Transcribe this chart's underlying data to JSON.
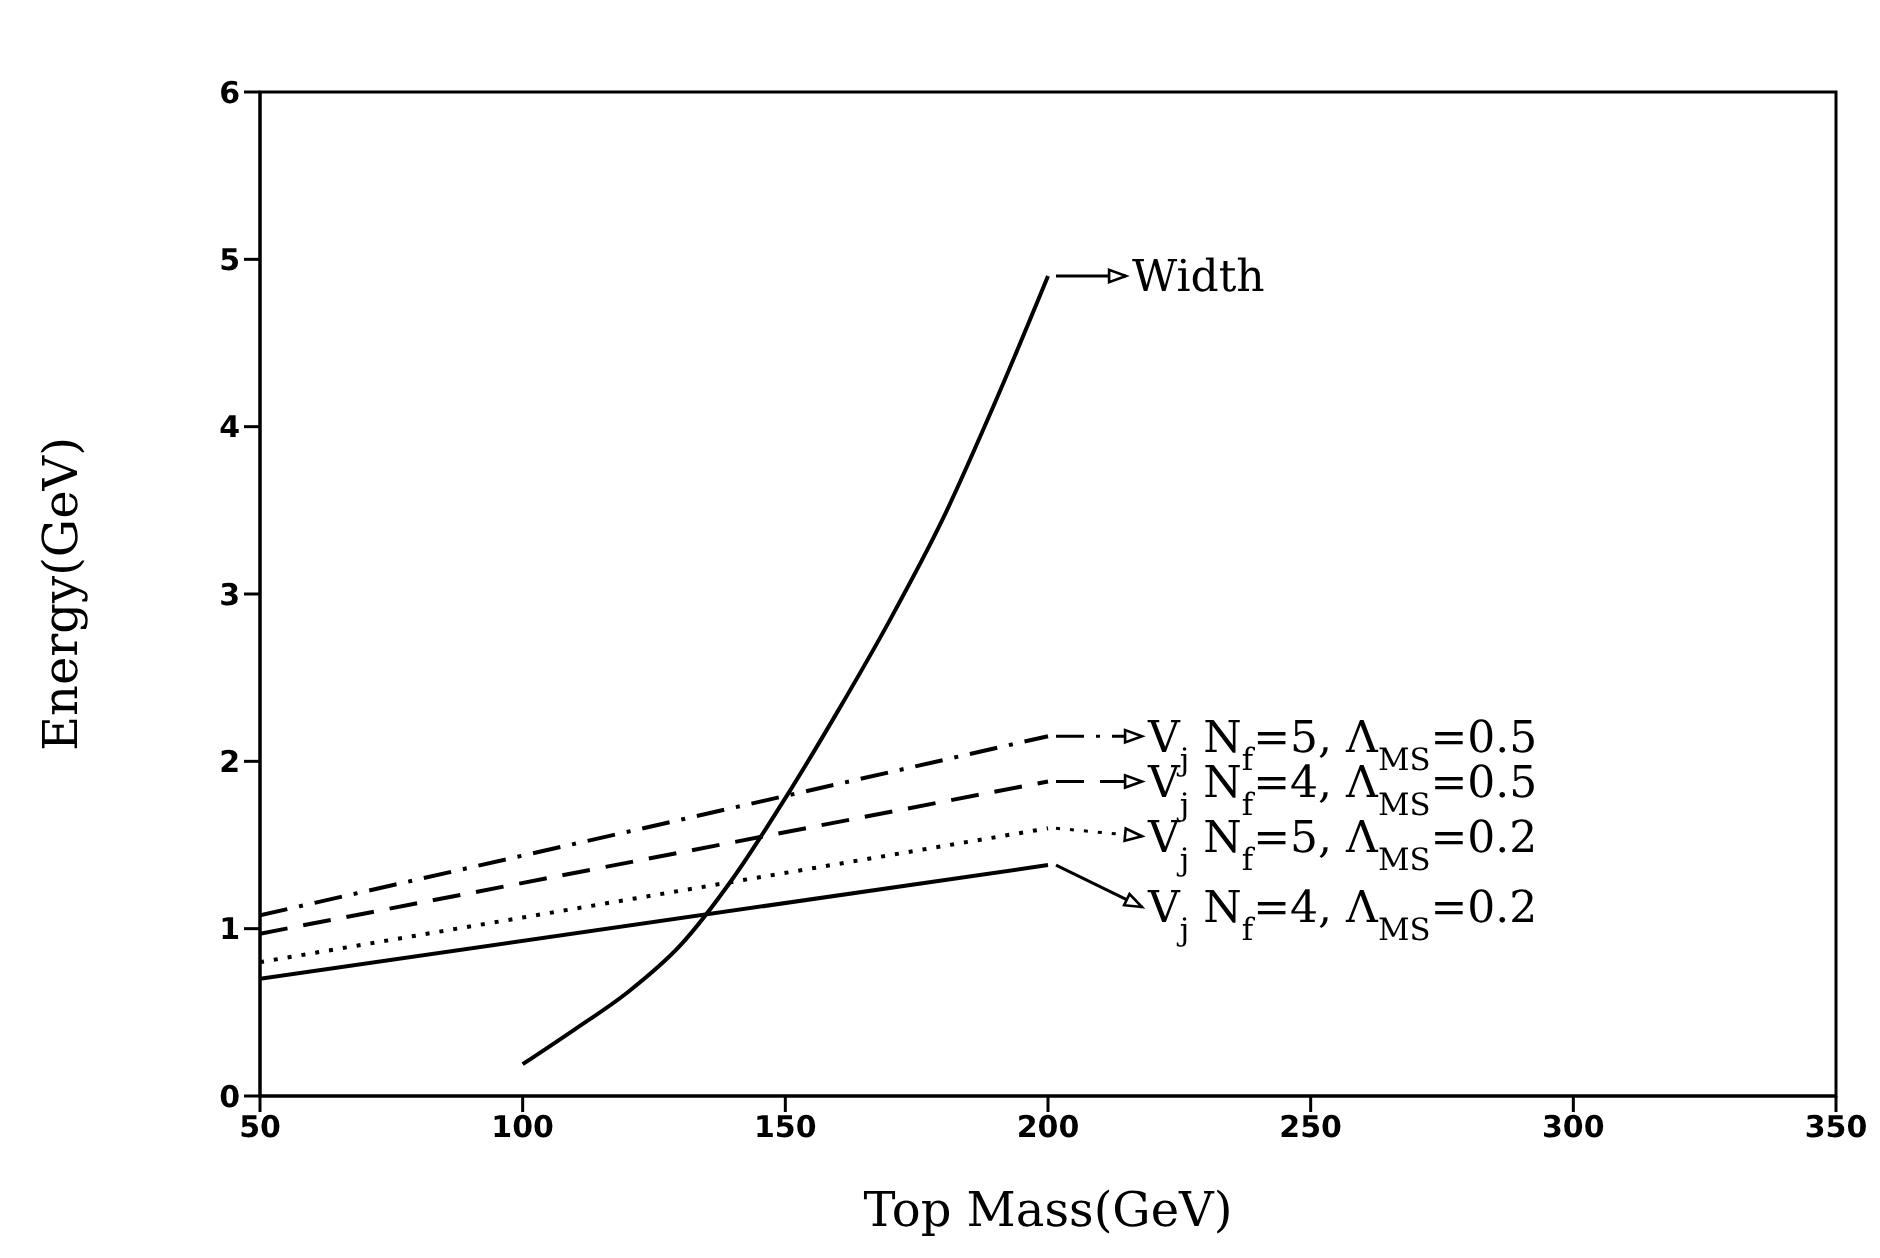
{
  "chart_data": {
    "type": "line",
    "xlabel": "Top Mass(GeV)",
    "ylabel": "Energy(GeV)",
    "xlim": [
      50,
      350
    ],
    "ylim": [
      0,
      6
    ],
    "xticks": [
      50,
      100,
      150,
      200,
      250,
      300,
      350
    ],
    "yticks": [
      0,
      1,
      2,
      3,
      4,
      5,
      6
    ],
    "legend": "right",
    "marker": "none",
    "series": [
      {
        "name": "Width",
        "color": "#000000",
        "line_style": "solid",
        "x": [
          100,
          110,
          120,
          130,
          140,
          150,
          160,
          170,
          180,
          190,
          200
        ],
        "values": [
          0.19,
          0.4,
          0.62,
          0.9,
          1.3,
          1.78,
          2.3,
          2.85,
          3.45,
          4.15,
          4.9
        ]
      },
      {
        "name": "V$_{j}$ N$_{f}$=5, Λ$_{MS}$=0.5",
        "color": "#000000",
        "line_style": "dashdot",
        "x": [
          50,
          200
        ],
        "values": [
          1.08,
          2.15
        ]
      },
      {
        "name": "V$_{j}$ N$_{f}$=4, Λ$_{MS}$=0.5",
        "color": "#000000",
        "line_style": "dashed",
        "x": [
          50,
          200
        ],
        "values": [
          0.97,
          1.88
        ]
      },
      {
        "name": "V$_{j}$ N$_{f}$=5, Λ$_{MS}$=0.2",
        "color": "#000000",
        "line_style": "dotted",
        "x": [
          50,
          200
        ],
        "values": [
          0.8,
          1.6
        ]
      },
      {
        "name": "V$_{j}$ N$_{f}$=4, Λ$_{MS}$=0.2",
        "color": "#000000",
        "line_style": "solid",
        "x": [
          50,
          200
        ],
        "values": [
          0.7,
          1.38
        ]
      }
    ]
  }
}
